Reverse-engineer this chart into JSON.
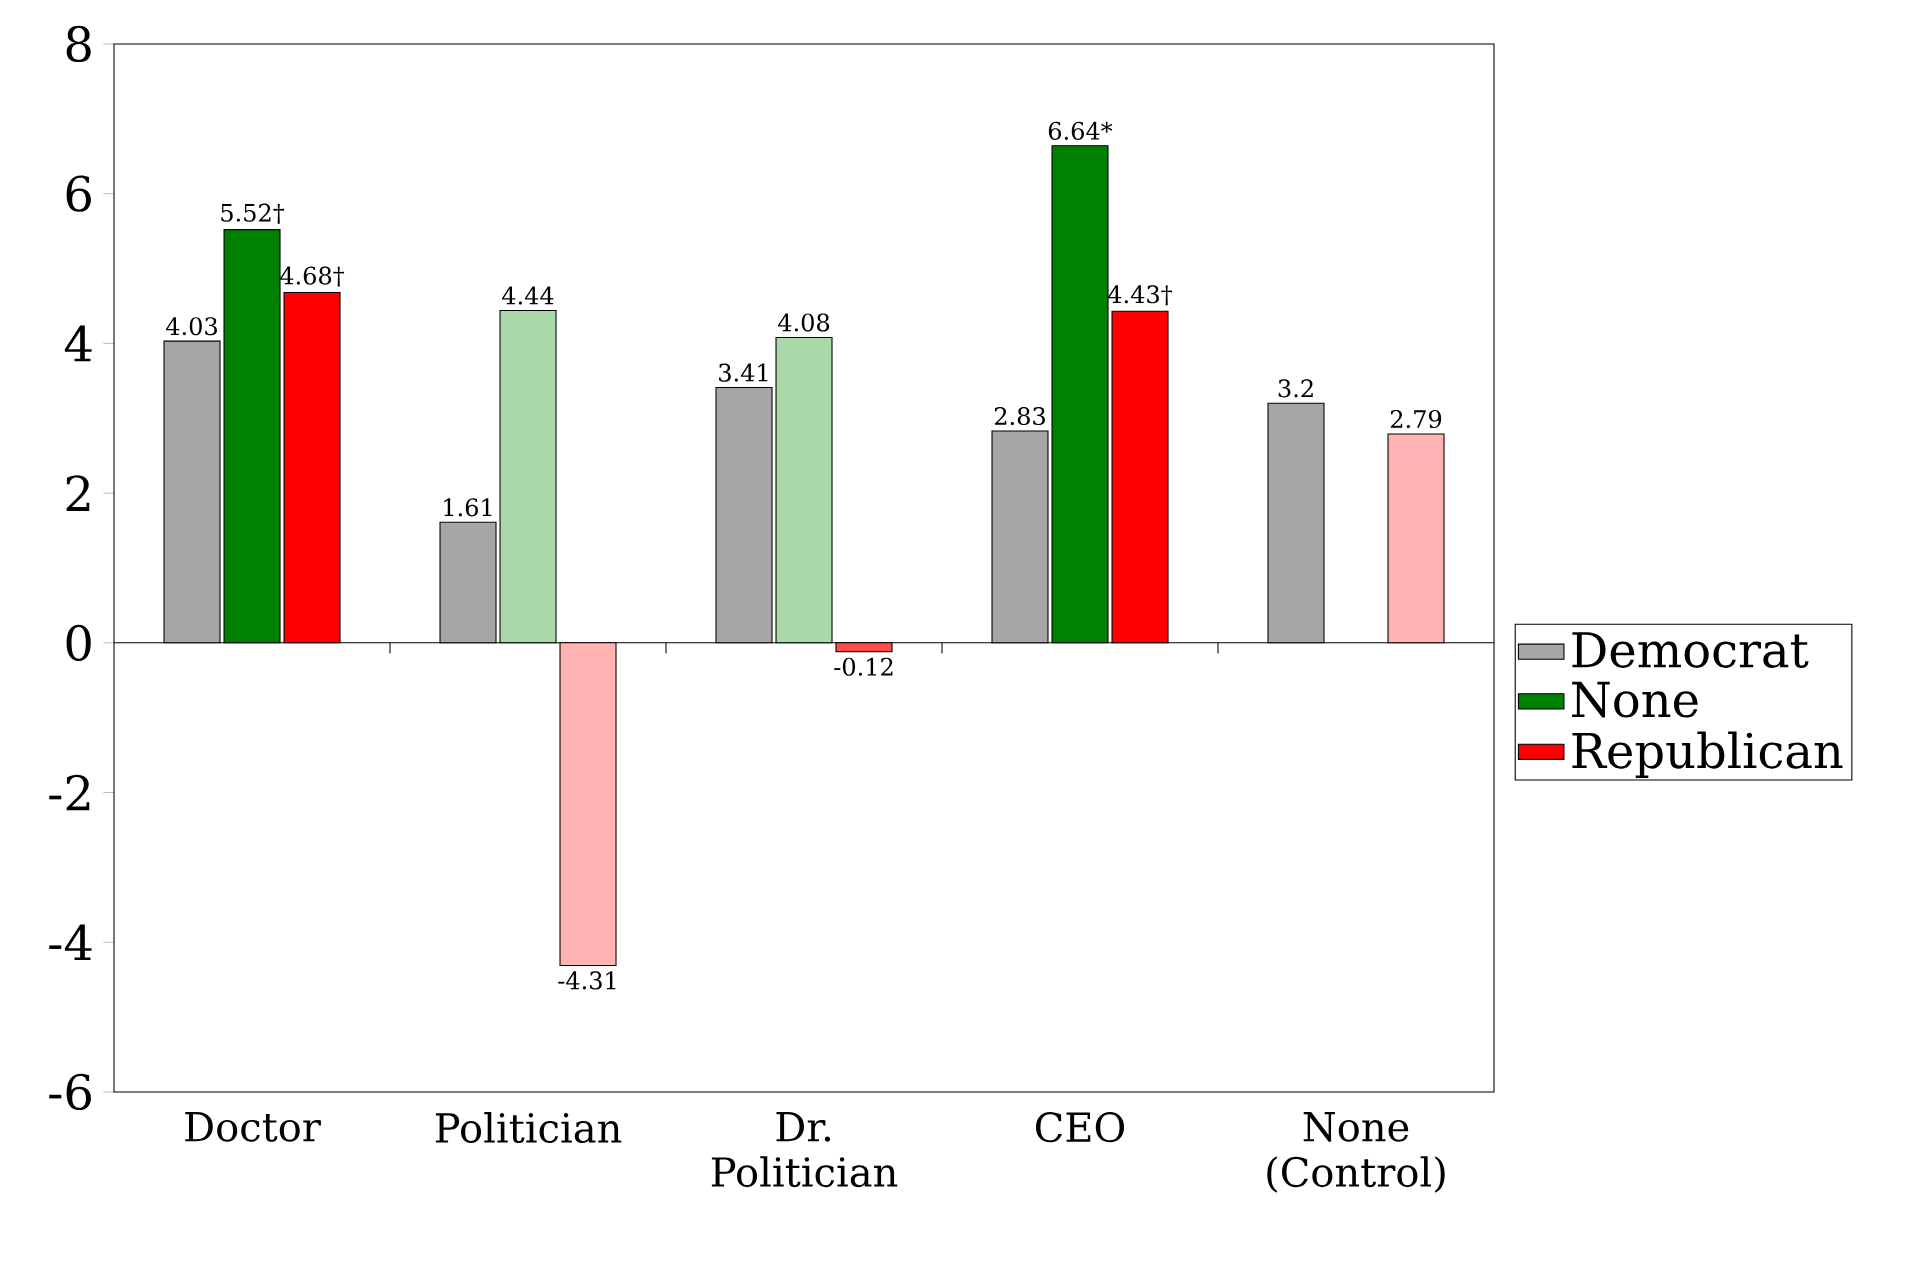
{
  "chart_data": {
    "type": "bar",
    "categories": [
      "Doctor",
      "Politician",
      "Dr. Politician",
      "CEO",
      "None (Control)"
    ],
    "series": [
      {
        "name": "Democrat",
        "color": "#a6a6a6",
        "colors": [
          "#a6a6a6",
          "#a6a6a6",
          "#a6a6a6",
          "#a6a6a6",
          "#a6a6a6"
        ],
        "values": [
          4.03,
          1.61,
          3.41,
          2.83,
          3.2
        ],
        "value_labels": [
          "4.03",
          "1.61",
          "3.41",
          "2.83",
          "3.2"
        ]
      },
      {
        "name": "None",
        "color": "#008000",
        "colors": [
          "#008000",
          "#a9d8a9",
          "#a9d8a9",
          "#008000",
          null
        ],
        "values": [
          5.52,
          4.44,
          4.08,
          6.64,
          null
        ],
        "value_labels": [
          "5.52†",
          "4.44",
          "4.08",
          "6.64*",
          null
        ]
      },
      {
        "name": "Republican",
        "color": "#ff0000",
        "colors": [
          "#ff0000",
          "#ffb3b3",
          "#ff4d4d",
          "#ff0000",
          "#ffb3b3"
        ],
        "values": [
          4.68,
          -4.31,
          -0.12,
          4.43,
          2.79
        ],
        "value_labels": [
          "4.68†",
          "-4.31",
          "-0.12",
          "4.43†",
          "2.79"
        ]
      }
    ],
    "ylim": [
      -6,
      8
    ],
    "yticks": [
      -6,
      -4,
      -2,
      0,
      2,
      4,
      6,
      8
    ],
    "legend": "right"
  }
}
